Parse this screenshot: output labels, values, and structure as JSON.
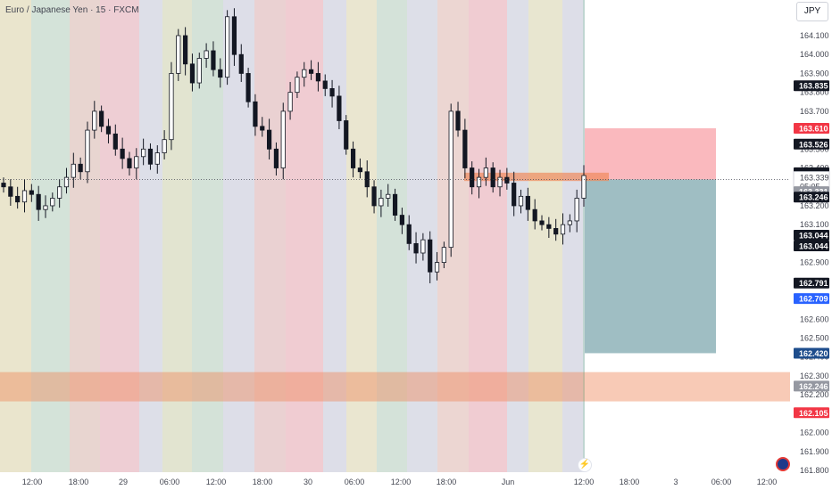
{
  "header": {
    "symbol_title": "Euro / Japanese Yen · 15 · FXCM",
    "currency_button": "JPY"
  },
  "colors": {
    "candle": "#131722",
    "zone_red": "#f23645",
    "zone_teal": "#2a6f7a",
    "zone_orange": "#f08a5d",
    "label_black": "#131722",
    "label_red": "#f23645",
    "label_blue": "#2962ff",
    "label_navy": "#1e4d8c",
    "label_grey": "#9598a1"
  },
  "icons": {
    "live": "lightning-icon",
    "settings": "chart-settings-icon"
  },
  "chart_data": {
    "type": "candlestick",
    "title": "Euro / Japanese Yen · 15 · FXCM",
    "ylim": [
      161.85,
      164.25
    ],
    "y_ticks": [
      "164.100",
      "164.000",
      "163.900",
      "163.800",
      "163.700",
      "163.600",
      "163.500",
      "163.400",
      "163.300",
      "163.200",
      "163.100",
      "163.000",
      "162.900",
      "162.800",
      "162.700",
      "162.600",
      "162.500",
      "162.400",
      "162.300",
      "162.200",
      "162.100",
      "162.000",
      "161.900",
      "161.800"
    ],
    "x_ticks": [
      "12:00",
      "18:00",
      "29",
      "06:00",
      "12:00",
      "18:00",
      "30",
      "06:00",
      "12:00",
      "18:00",
      "Jun",
      "12:00",
      "18:00",
      "3",
      "06:00",
      "12:00"
    ],
    "price_close_series": [
      163.3,
      163.25,
      163.22,
      163.28,
      163.26,
      163.18,
      163.2,
      163.24,
      163.3,
      163.35,
      163.42,
      163.38,
      163.6,
      163.7,
      163.62,
      163.58,
      163.5,
      163.45,
      163.4,
      163.46,
      163.5,
      163.42,
      163.48,
      163.55,
      163.9,
      164.1,
      163.95,
      163.85,
      163.98,
      164.02,
      163.92,
      163.88,
      164.2,
      164.0,
      163.9,
      163.75,
      163.62,
      163.6,
      163.5,
      163.4,
      163.7,
      163.8,
      163.88,
      163.92,
      163.9,
      163.86,
      163.82,
      163.78,
      163.65,
      163.5,
      163.4,
      163.38,
      163.3,
      163.2,
      163.24,
      163.26,
      163.15,
      163.1,
      163.0,
      162.95,
      163.02,
      162.85,
      162.9,
      162.98,
      163.7,
      163.6,
      163.4,
      163.3,
      163.35,
      163.4,
      163.3,
      163.35,
      163.32,
      163.2,
      163.25,
      163.18,
      163.12,
      163.1,
      163.08,
      163.05,
      163.1,
      163.12,
      163.24,
      163.36
    ],
    "price_labels": [
      {
        "value": "163.835",
        "color": "black"
      },
      {
        "value": "163.610",
        "color": "red"
      },
      {
        "value": "163.526",
        "color": "black"
      },
      {
        "value": "163.375",
        "color": "black"
      },
      {
        "value": "163.363",
        "color": "black"
      },
      {
        "value": "163.339",
        "color": "current",
        "countdown": "05:05"
      },
      {
        "value": "163.331",
        "color": "grey"
      },
      {
        "value": "163.246",
        "color": "black"
      },
      {
        "value": "163.044",
        "color": "black"
      },
      {
        "value": "163.044",
        "color": "black"
      },
      {
        "value": "162.791",
        "color": "black"
      },
      {
        "value": "162.709",
        "color": "blue"
      },
      {
        "value": "162.420",
        "color": "navy"
      },
      {
        "value": "162.246",
        "color": "grey"
      },
      {
        "value": "162.105",
        "color": "red"
      }
    ],
    "zones": [
      {
        "name": "stop-loss-zone",
        "y_top": 163.61,
        "y_bottom": 163.339
      },
      {
        "name": "take-profit-zone",
        "y_top": 163.339,
        "y_bottom": 162.42
      },
      {
        "name": "entry-zone",
        "y_top": 163.375,
        "y_bottom": 163.331
      },
      {
        "name": "support-zone",
        "y_top": 162.32,
        "y_bottom": 162.165
      }
    ],
    "grid": false,
    "session_bands": true
  }
}
